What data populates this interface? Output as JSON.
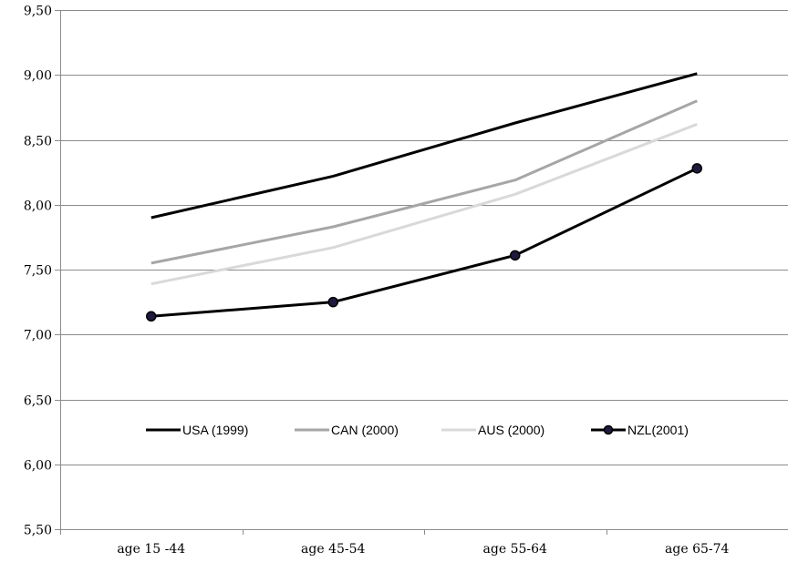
{
  "chart_data": {
    "type": "line",
    "categories": [
      "age 15 -44",
      "age 45-54",
      "age 55-64",
      "age 65-74"
    ],
    "ylim": [
      5.5,
      9.5
    ],
    "yticks": [
      "5,50",
      "6,00",
      "6,50",
      "7,00",
      "7,50",
      "8,00",
      "8,50",
      "9,00",
      "9,50"
    ],
    "ytick_values": [
      5.5,
      6.0,
      6.5,
      7.0,
      7.5,
      8.0,
      8.5,
      9.0,
      9.5
    ],
    "grid": true,
    "legend_position": "inside-lower-middle",
    "series": [
      {
        "name": "USA (1999)",
        "values": [
          7.9,
          8.22,
          8.63,
          9.01
        ],
        "color": "#000000",
        "markers": false
      },
      {
        "name": "CAN (2000)",
        "values": [
          7.55,
          7.83,
          8.19,
          8.8
        ],
        "color": "#a6a6a6",
        "markers": false
      },
      {
        "name": "AUS (2000)",
        "values": [
          7.39,
          7.67,
          8.08,
          8.62
        ],
        "color": "#d9d9d9",
        "markers": false
      },
      {
        "name": "NZL(2001)",
        "values": [
          7.14,
          7.25,
          7.61,
          8.28
        ],
        "color": "#000000",
        "markers": true,
        "marker_fill": "#1f1a3d"
      }
    ]
  }
}
